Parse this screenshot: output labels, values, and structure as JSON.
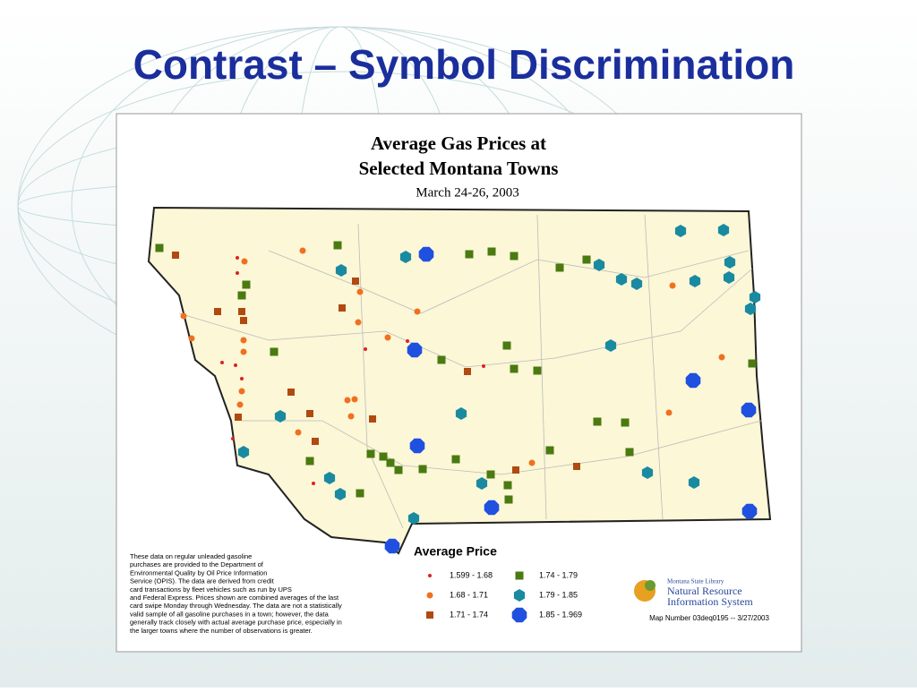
{
  "slide": {
    "title": "Contrast – Symbol Discrimination"
  },
  "map": {
    "title_lines": [
      "Average Gas Prices at",
      "Selected Montana Towns"
    ],
    "date": "March 24-26, 2003",
    "note_lines": [
      "These data on regular unleaded gasoline",
      "purchases are provided to the Department of",
      "Environmental Quality by Oil Price Information",
      "Service (OPIS). The data are derived from credit",
      "card transactions by fleet vehicles such as run by UPS",
      "and Federal Express. Prices shown are combined averages of the last",
      "card swipe Monday through Wednesday. The data are not a statistically",
      "valid sample of all gasoline purchases in a town; however, the data",
      "generally track closely with actual average purchase price, especially in",
      "the larger towns where the number of observations is greater."
    ],
    "legend": {
      "title": "Average Price",
      "items": [
        "1.599 - 1.68",
        "1.68 - 1.71",
        "1.71 - 1.74",
        "1.74 - 1.79",
        "1.79 - 1.85",
        "1.85 - 1.969"
      ]
    },
    "logo": {
      "small": "Montana State Library",
      "line1": "Natural Resource",
      "line2": "Information System"
    },
    "map_number": "Map Number 03deq0195 -- 3/27/2003"
  }
}
